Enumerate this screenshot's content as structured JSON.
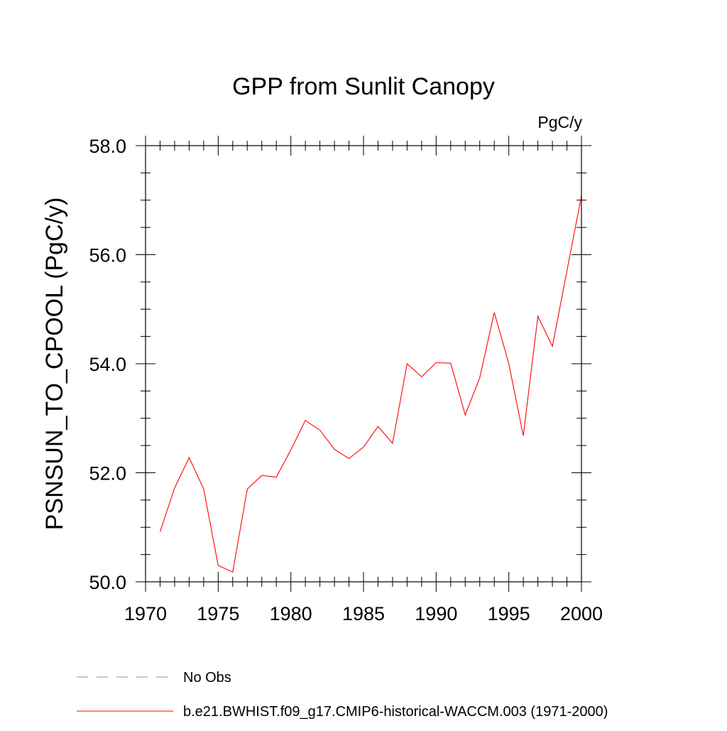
{
  "chart_data": {
    "type": "line",
    "title": "GPP from Sunlit Canopy",
    "units": "PgC/y",
    "ylabel": "PSNSUN_TO_CPOOL  (PgC/y)",
    "xlabel": "",
    "xlim": [
      1970,
      2000
    ],
    "ylim": [
      50,
      58
    ],
    "x_ticks": [
      1970,
      1975,
      1980,
      1985,
      1990,
      1995,
      2000
    ],
    "x_tick_labels": [
      "1970",
      "1975",
      "1980",
      "1985",
      "1990",
      "1995",
      "2000"
    ],
    "y_ticks": [
      50,
      52,
      54,
      56,
      58
    ],
    "y_tick_labels": [
      "50.0",
      "52.0",
      "54.0",
      "56.0",
      "58.0"
    ],
    "x_minor_step": 1,
    "y_minor_step": 0.5,
    "grid": false,
    "legend_placement": "bottom",
    "series": [
      {
        "name": "b.e21.BWHIST.f09_g17.CMIP6-historical-WACCM.003 (1971-2000)",
        "color": "#ff0000",
        "dash": "solid",
        "x": [
          1971,
          1972,
          1973,
          1974,
          1975,
          1976,
          1977,
          1978,
          1979,
          1980,
          1981,
          1982,
          1983,
          1984,
          1985,
          1986,
          1987,
          1988,
          1989,
          1990,
          1991,
          1992,
          1993,
          1994,
          1995,
          1996,
          1997,
          1998,
          1999,
          2000
        ],
        "values": [
          50.92,
          51.72,
          52.28,
          51.7,
          50.3,
          50.18,
          51.7,
          51.95,
          51.92,
          52.42,
          52.96,
          52.78,
          52.43,
          52.26,
          52.47,
          52.85,
          52.54,
          54.0,
          53.76,
          54.02,
          54.01,
          53.06,
          53.74,
          54.94,
          54.0,
          52.68,
          54.87,
          54.32,
          55.7,
          57.08
        ]
      }
    ],
    "legend": [
      {
        "label": "No Obs",
        "color": "#8a80d0",
        "dash": "dashed"
      },
      {
        "label": "b.e21.BWHIST.f09_g17.CMIP6-historical-WACCM.003 (1971-2000)",
        "color": "#ff0000",
        "dash": "solid"
      }
    ]
  }
}
